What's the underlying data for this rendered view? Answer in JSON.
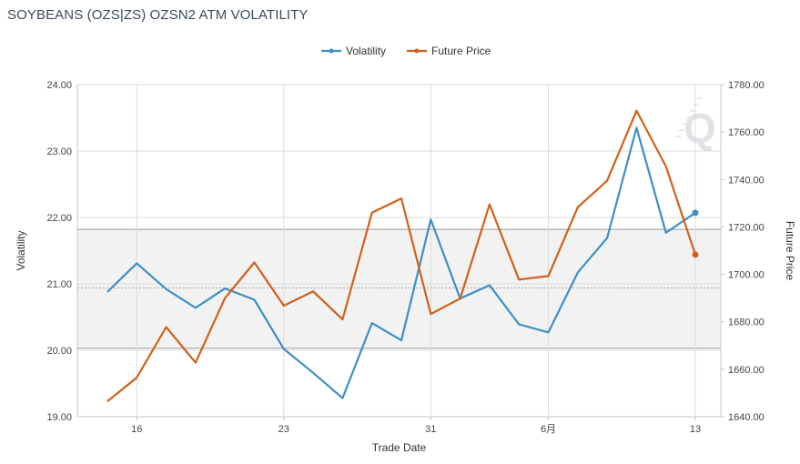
{
  "title": "SOYBEANS (OZS|ZS) OZSN2 ATM VOLATILITY",
  "chart_data": {
    "type": "line",
    "title": "SOYBEANS (OZS|ZS) OZSN2 ATM VOLATILITY",
    "xlabel": "Trade Date",
    "ylabel_left": "Volatility",
    "ylabel_right": "Future Price",
    "x_tick_labels": [
      "16",
      "23",
      "31",
      "6月",
      "13"
    ],
    "y_left_ticks": [
      "19.00",
      "20.00",
      "21.00",
      "22.00",
      "23.00",
      "24.00"
    ],
    "y_right_ticks": [
      "1640.00",
      "1660.00",
      "1680.00",
      "1700.00",
      "1720.00",
      "1740.00",
      "1760.00",
      "1780.00"
    ],
    "y_left_range": [
      19,
      24
    ],
    "y_right_range": [
      1640,
      1780
    ],
    "legend_position": "top-center",
    "grid": true,
    "x_index": [
      0,
      1,
      2,
      3,
      4,
      5,
      6,
      7,
      8,
      9,
      10,
      11,
      12,
      13,
      14,
      15,
      16,
      17,
      18,
      19,
      20
    ],
    "series": [
      {
        "name": "Volatility",
        "axis": "left",
        "color": "#3d8fc6",
        "values": [
          20.88,
          21.31,
          20.92,
          20.64,
          20.93,
          20.76,
          20.02,
          19.66,
          19.28,
          20.41,
          20.15,
          21.97,
          20.78,
          20.98,
          20.39,
          20.27,
          21.17,
          21.69,
          23.35,
          21.77,
          22.07
        ]
      },
      {
        "name": "Future Price",
        "axis": "right",
        "color": "#d2601a",
        "values": [
          1646.5,
          1656.5,
          1677.8,
          1662.8,
          1690.0,
          1705.0,
          1686.8,
          1692.8,
          1681.0,
          1726.0,
          1732.0,
          1683.3,
          1689.8,
          1729.5,
          1697.8,
          1699.3,
          1728.3,
          1739.5,
          1769.0,
          1745.5,
          1708.3
        ]
      }
    ],
    "band": {
      "axis": "left",
      "range": [
        20.03,
        21.82
      ],
      "mean": 20.94,
      "color": "#f2f2f2"
    },
    "watermark": "Q"
  }
}
